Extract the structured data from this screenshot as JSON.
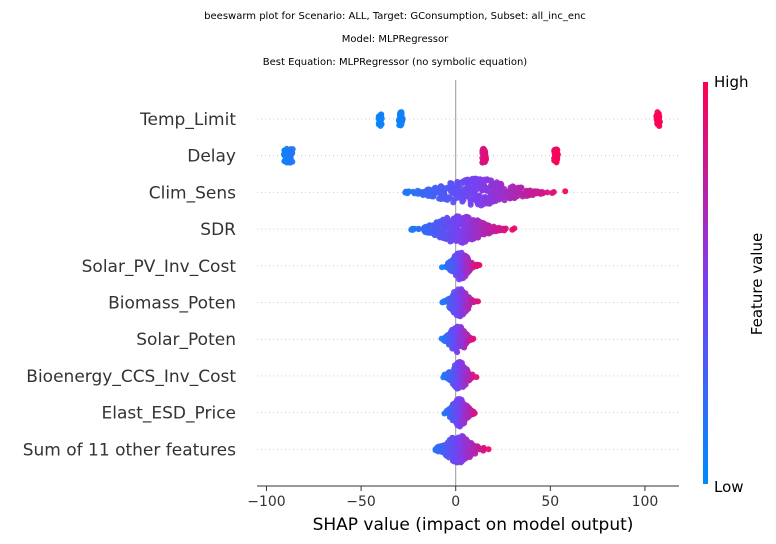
{
  "chart_data": {
    "type": "scatter",
    "subtype": "beeswarm",
    "title_lines": [
      "beeswarm plot for Scenario: ALL, Target: GConsumption, Subset: all_inc_enc",
      "Model: MLPRegressor",
      "Best Equation: MLPRegressor (no symbolic equation)"
    ],
    "xlabel": "SHAP value (impact on model output)",
    "xlim": [
      -105,
      118
    ],
    "xticks": [
      -100,
      -50,
      0,
      50,
      100
    ],
    "xtick_labels": [
      "−100",
      "−50",
      "0",
      "50",
      "100"
    ],
    "features": [
      {
        "name": "Temp_Limit",
        "groups": [
          {
            "min": -41,
            "max": -39,
            "count": 22,
            "fl": [
              0.02,
              0.08
            ]
          },
          {
            "min": -30,
            "max": -28,
            "count": 30,
            "fl": [
              0.04,
              0.1
            ]
          },
          {
            "min": 106,
            "max": 108,
            "count": 24,
            "fl": [
              0.96,
              1.0
            ]
          }
        ]
      },
      {
        "name": "Delay",
        "groups": [
          {
            "min": -91,
            "max": -86,
            "count": 40,
            "fl": [
              0.05,
              0.15
            ]
          },
          {
            "min": 14,
            "max": 16,
            "count": 48,
            "fl": [
              0.82,
              0.9
            ]
          },
          {
            "min": 52,
            "max": 54,
            "count": 30,
            "fl": [
              0.94,
              1.0
            ]
          }
        ]
      },
      {
        "name": "Clim_Sens",
        "groups": [
          {
            "min": -40,
            "max": 63,
            "count": 320,
            "fl": [
              0.0,
              1.0
            ]
          }
        ]
      },
      {
        "name": "SDR",
        "groups": [
          {
            "min": -31,
            "max": 35,
            "count": 320,
            "fl": [
              0.0,
              1.0
            ]
          }
        ]
      },
      {
        "name": "Solar_PV_Inv_Cost",
        "groups": [
          {
            "min": -9,
            "max": 14,
            "count": 180,
            "fl": [
              0.0,
              1.0
            ]
          }
        ]
      },
      {
        "name": "Biomass_Poten",
        "groups": [
          {
            "min": -10,
            "max": 14,
            "count": 180,
            "fl": [
              0.0,
              1.0
            ]
          }
        ]
      },
      {
        "name": "Solar_Poten",
        "groups": [
          {
            "min": -10,
            "max": 12,
            "count": 170,
            "fl": [
              0.0,
              1.0
            ]
          }
        ]
      },
      {
        "name": "Bioenergy_CCS_Inv_Cost",
        "groups": [
          {
            "min": -9,
            "max": 13,
            "count": 180,
            "fl": [
              0.0,
              1.0
            ]
          }
        ]
      },
      {
        "name": "Elast_ESD_Price",
        "groups": [
          {
            "min": -9,
            "max": 13,
            "count": 170,
            "fl": [
              0.0,
              1.0
            ]
          }
        ]
      },
      {
        "name": "Sum of 11 other features",
        "groups": [
          {
            "min": -17,
            "max": 20,
            "count": 220,
            "fl": [
              0.0,
              1.0
            ]
          }
        ]
      }
    ],
    "colorbar": {
      "label": "Feature value",
      "high_label": "High",
      "low_label": "Low",
      "low_color": "#008bfb",
      "high_color": "#ff0052"
    },
    "grid": "dotted horizontal rows",
    "zero_line_color": "#999999"
  }
}
